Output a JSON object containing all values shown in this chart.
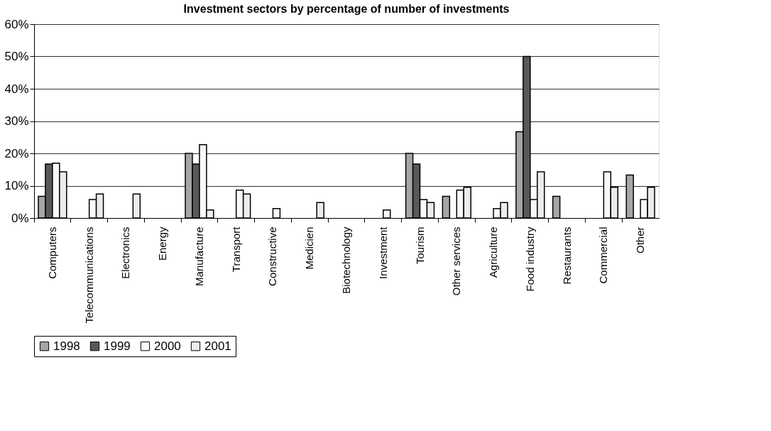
{
  "chart_data": {
    "type": "bar",
    "title": "Investment sectors by percentage of number of investments",
    "categories": [
      "Computers",
      "Telecommunications",
      "Electronics",
      "Energy",
      "Manufacture",
      "Transport",
      "Constructive",
      "Medicien",
      "Biotechnology",
      "Investment",
      "Tourism",
      "Other services",
      "Agriculture",
      "Food industry",
      "Restaurants",
      "Commercial",
      "Other"
    ],
    "series": [
      {
        "name": "1998",
        "color": "#a6a6a6",
        "values": [
          6.7,
          null,
          null,
          null,
          20,
          null,
          null,
          null,
          null,
          null,
          20,
          6.7,
          null,
          26.7,
          6.7,
          null,
          13.3
        ]
      },
      {
        "name": "1999",
        "color": "#595959",
        "values": [
          16.7,
          null,
          null,
          null,
          16.7,
          null,
          null,
          null,
          null,
          null,
          16.7,
          null,
          null,
          50,
          null,
          null,
          null
        ]
      },
      {
        "name": "2000",
        "color": "#f8f8f8",
        "values": [
          17,
          5.7,
          null,
          null,
          22.7,
          8.6,
          2.9,
          null,
          null,
          2.5,
          5.7,
          8.6,
          2.9,
          5.7,
          null,
          14.3,
          5.7
        ]
      },
      {
        "name": "2001",
        "color": "#ececec",
        "values": [
          14.3,
          7.4,
          7.4,
          null,
          2.5,
          7.4,
          null,
          4.8,
          null,
          null,
          4.8,
          9.5,
          4.8,
          14.3,
          null,
          9.5,
          9.5
        ]
      }
    ],
    "ylim": [
      0,
      60
    ],
    "yticks": [
      {
        "value": 0,
        "label": "0%"
      },
      {
        "value": 10,
        "label": "10%"
      },
      {
        "value": 20,
        "label": "20%"
      },
      {
        "value": 30,
        "label": "30%"
      },
      {
        "value": 40,
        "label": "40%"
      },
      {
        "value": 50,
        "label": "50%"
      },
      {
        "value": 60,
        "label": "60%"
      }
    ],
    "grid": "y",
    "legend": "bottom"
  }
}
